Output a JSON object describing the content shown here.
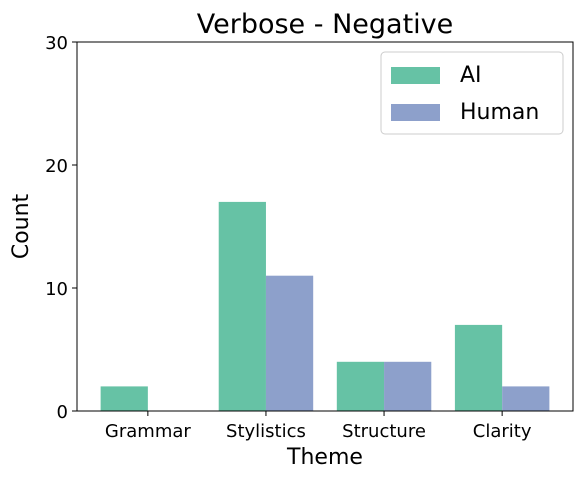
{
  "chart_data": {
    "type": "bar",
    "title": "Verbose - Negative",
    "xlabel": "Theme",
    "ylabel": "Count",
    "categories": [
      "Grammar",
      "Stylistics",
      "Structure",
      "Clarity"
    ],
    "series": [
      {
        "name": "AI",
        "values": [
          2,
          17,
          4,
          7
        ],
        "color": "#66c2a5"
      },
      {
        "name": "Human",
        "values": [
          0,
          11,
          4,
          2
        ],
        "color": "#8da0cb"
      }
    ],
    "ylim": [
      0,
      30
    ],
    "yticks": [
      0,
      10,
      20,
      30
    ],
    "legend_position": "top-right",
    "grid": false
  }
}
